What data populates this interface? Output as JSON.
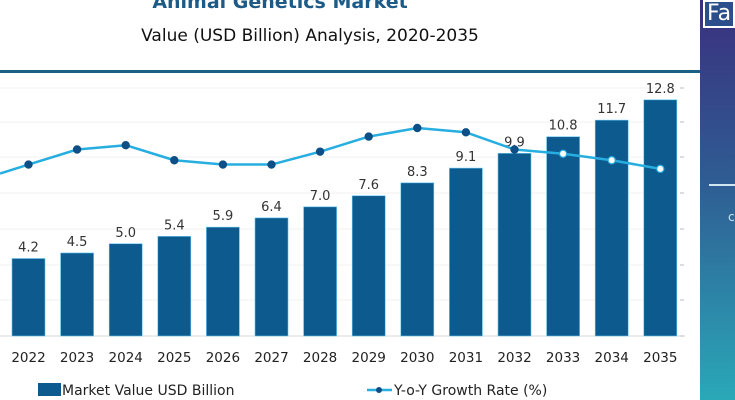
{
  "header": {
    "title": "Animal Genetics Market",
    "subtitle": "Value (USD Billion) Analysis, 2020-2035"
  },
  "side_panel": {
    "logo_text": "Fa",
    "partial_char": "c"
  },
  "colors": {
    "bar": "#0d5a8f",
    "line": "#27aee0",
    "marker": "#0d4f86",
    "title": "#1d5a86"
  },
  "chart_data": {
    "type": "bar",
    "title": "Animal Genetics Market",
    "subtitle": "Value (USD Billion) Analysis, 2020-2035",
    "xlabel": "",
    "ylabel": "",
    "categories": [
      "2022",
      "2023",
      "2024",
      "2025",
      "2026",
      "2027",
      "2028",
      "2029",
      "2030",
      "2031",
      "2032",
      "2033",
      "2034",
      "2035"
    ],
    "series": [
      {
        "name": "Market Value USD Billion",
        "type": "bar",
        "axis": "left",
        "values": [
          4.2,
          4.5,
          5.0,
          5.4,
          5.9,
          6.4,
          7.0,
          7.6,
          8.3,
          9.1,
          9.9,
          10.8,
          11.7,
          12.8
        ],
        "labels": [
          "4.2",
          "4.5",
          "5.0",
          "5.4",
          "5.9",
          "6.4",
          "7.0",
          "7.6",
          "8.3",
          "9.1",
          "9.9",
          "10.8",
          "11.7",
          "12.8"
        ]
      },
      {
        "name": "Y-o-Y Growth Rate (%)",
        "type": "line",
        "axis": "right",
        "values": [
          7.6,
          8.3,
          8.5,
          7.8,
          7.6,
          7.6,
          8.2,
          8.9,
          9.3,
          9.1,
          8.3,
          8.1,
          7.8,
          7.4
        ],
        "note": "values estimated; line unlabeled"
      }
    ],
    "ylim": [
      0,
      14
    ],
    "y2lim": [
      0,
      12
    ],
    "grid": true,
    "legend": [
      "Market Value USD Billion",
      "Y-o-Y Growth Rate (%)"
    ],
    "legend_position": "bottom"
  }
}
